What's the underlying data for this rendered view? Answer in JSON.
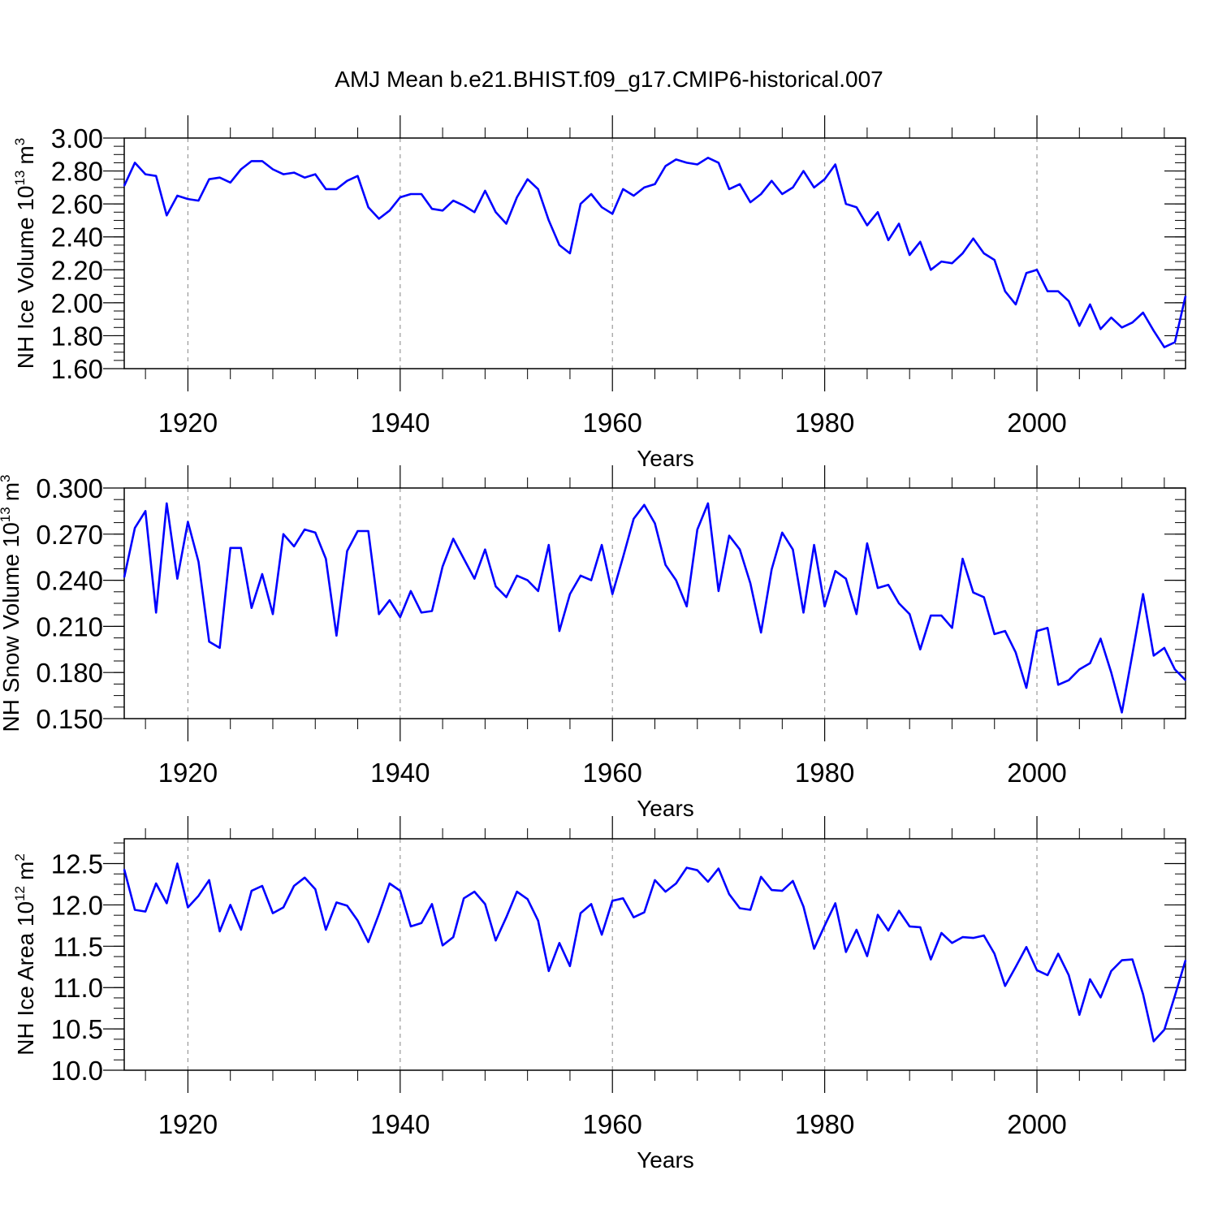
{
  "figure": {
    "title": "AMJ Mean b.e21.BHIST.f09_g17.CMIP6-historical.007",
    "line_color": "#0000ff"
  },
  "chart_data": [
    {
      "type": "line",
      "title": "",
      "ylabel": {
        "base": "NH Ice Volume 10",
        "exp": "13",
        "unit": "m",
        "unit_exp": "3"
      },
      "xlabel": "Years",
      "x_start": 1914,
      "xlim": [
        1914,
        2014
      ],
      "ylim": [
        1.6,
        3.0
      ],
      "yticks": [
        1.6,
        1.8,
        2.0,
        2.2,
        2.4,
        2.6,
        2.8,
        3.0
      ],
      "ytick_labels": [
        "1.60",
        "1.80",
        "2.00",
        "2.20",
        "2.40",
        "2.60",
        "2.80",
        "3.00"
      ],
      "xticks": [
        1920,
        1940,
        1960,
        1980,
        2000
      ],
      "xtick_labels": [
        "1920",
        "1940",
        "1960",
        "1980",
        "2000"
      ],
      "grid": "vertical dashed at major x ticks",
      "values": [
        2.71,
        2.85,
        2.78,
        2.77,
        2.53,
        2.65,
        2.63,
        2.62,
        2.75,
        2.76,
        2.73,
        2.81,
        2.86,
        2.86,
        2.81,
        2.78,
        2.79,
        2.76,
        2.78,
        2.69,
        2.69,
        2.74,
        2.77,
        2.58,
        2.51,
        2.56,
        2.64,
        2.66,
        2.66,
        2.57,
        2.56,
        2.62,
        2.59,
        2.55,
        2.68,
        2.55,
        2.48,
        2.64,
        2.75,
        2.69,
        2.5,
        2.35,
        2.3,
        2.6,
        2.66,
        2.58,
        2.54,
        2.69,
        2.65,
        2.7,
        2.72,
        2.83,
        2.87,
        2.85,
        2.84,
        2.88,
        2.85,
        2.69,
        2.72,
        2.61,
        2.66,
        2.74,
        2.66,
        2.7,
        2.8,
        2.7,
        2.75,
        2.84,
        2.6,
        2.58,
        2.47,
        2.55,
        2.38,
        2.48,
        2.29,
        2.37,
        2.2,
        2.25,
        2.24,
        2.3,
        2.39,
        2.3,
        2.26,
        2.07,
        1.99,
        2.18,
        2.2,
        2.07,
        2.07,
        2.01,
        1.86,
        1.99,
        1.84,
        1.91,
        1.85,
        1.88,
        1.94,
        1.83,
        1.73,
        1.76,
        2.04
      ]
    },
    {
      "type": "line",
      "title": "",
      "ylabel": {
        "base": "NH Snow Volume 10",
        "exp": "13",
        "unit": "m",
        "unit_exp": "3"
      },
      "xlabel": "Years",
      "x_start": 1914,
      "xlim": [
        1914,
        2014
      ],
      "ylim": [
        0.15,
        0.3
      ],
      "yticks": [
        0.15,
        0.18,
        0.21,
        0.24,
        0.27,
        0.3
      ],
      "ytick_labels": [
        "0.150",
        "0.180",
        "0.210",
        "0.240",
        "0.270",
        "0.300"
      ],
      "xticks": [
        1920,
        1940,
        1960,
        1980,
        2000
      ],
      "xtick_labels": [
        "1920",
        "1940",
        "1960",
        "1980",
        "2000"
      ],
      "grid": "vertical dashed at major x ticks",
      "values": [
        0.242,
        0.274,
        0.285,
        0.219,
        0.29,
        0.241,
        0.278,
        0.252,
        0.2,
        0.196,
        0.261,
        0.261,
        0.222,
        0.244,
        0.218,
        0.27,
        0.262,
        0.273,
        0.271,
        0.254,
        0.204,
        0.259,
        0.272,
        0.272,
        0.218,
        0.227,
        0.216,
        0.233,
        0.219,
        0.22,
        0.249,
        0.267,
        0.254,
        0.241,
        0.26,
        0.236,
        0.229,
        0.243,
        0.24,
        0.233,
        0.263,
        0.207,
        0.231,
        0.243,
        0.24,
        0.263,
        0.231,
        0.255,
        0.28,
        0.289,
        0.277,
        0.25,
        0.24,
        0.223,
        0.273,
        0.29,
        0.233,
        0.269,
        0.26,
        0.238,
        0.206,
        0.247,
        0.271,
        0.26,
        0.219,
        0.263,
        0.223,
        0.246,
        0.241,
        0.218,
        0.264,
        0.235,
        0.237,
        0.225,
        0.218,
        0.195,
        0.217,
        0.217,
        0.209,
        0.254,
        0.232,
        0.229,
        0.205,
        0.207,
        0.193,
        0.17,
        0.207,
        0.209,
        0.172,
        0.175,
        0.182,
        0.186,
        0.202,
        0.18,
        0.154,
        0.192,
        0.231,
        0.191,
        0.196,
        0.182,
        0.175
      ]
    },
    {
      "type": "line",
      "title": "",
      "ylabel": {
        "base": "NH Ice Area 10",
        "exp": "12",
        "unit": "m",
        "unit_exp": "2"
      },
      "xlabel": "Years",
      "x_start": 1914,
      "xlim": [
        1914,
        2014
      ],
      "ylim": [
        10.0,
        12.8
      ],
      "yticks": [
        10.0,
        10.5,
        11.0,
        11.5,
        12.0,
        12.5
      ],
      "ytick_labels": [
        "10.0",
        "10.5",
        "11.0",
        "11.5",
        "12.0",
        "12.5"
      ],
      "xticks": [
        1920,
        1940,
        1960,
        1980,
        2000
      ],
      "xtick_labels": [
        "1920",
        "1940",
        "1960",
        "1980",
        "2000"
      ],
      "grid": "vertical dashed at major x ticks",
      "values": [
        12.43,
        11.94,
        11.92,
        12.26,
        12.02,
        12.5,
        11.97,
        12.11,
        12.3,
        11.68,
        12.0,
        11.7,
        12.17,
        12.23,
        11.9,
        11.97,
        12.23,
        12.33,
        12.19,
        11.7,
        12.03,
        11.99,
        11.81,
        11.55,
        11.89,
        12.26,
        12.17,
        11.74,
        11.78,
        12.01,
        11.51,
        11.61,
        12.08,
        12.16,
        12.01,
        11.57,
        11.85,
        12.16,
        12.07,
        11.81,
        11.2,
        11.54,
        11.26,
        11.9,
        12.01,
        11.64,
        12.05,
        12.08,
        11.85,
        11.91,
        12.3,
        12.16,
        12.26,
        12.45,
        12.42,
        12.28,
        12.44,
        12.13,
        11.96,
        11.94,
        12.34,
        12.18,
        12.17,
        12.29,
        11.98,
        11.47,
        11.75,
        12.02,
        11.43,
        11.7,
        11.38,
        11.88,
        11.69,
        11.93,
        11.74,
        11.73,
        11.34,
        11.66,
        11.54,
        11.61,
        11.6,
        11.63,
        11.41,
        11.02,
        11.25,
        11.49,
        11.21,
        11.15,
        11.41,
        11.15,
        10.67,
        11.1,
        10.88,
        11.2,
        11.33,
        11.34,
        10.92,
        10.35,
        10.49,
        10.9,
        11.33
      ]
    }
  ]
}
